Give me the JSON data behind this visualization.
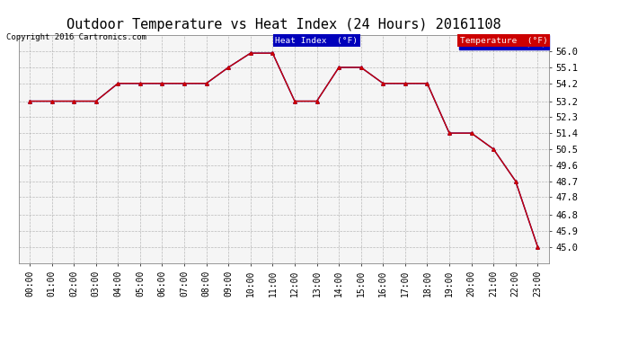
{
  "title": "Outdoor Temperature vs Heat Index (24 Hours) 20161108",
  "copyright": "Copyright 2016 Cartronics.com",
  "hours": [
    "00:00",
    "01:00",
    "02:00",
    "03:00",
    "04:00",
    "05:00",
    "06:00",
    "07:00",
    "08:00",
    "09:00",
    "10:00",
    "11:00",
    "12:00",
    "13:00",
    "14:00",
    "15:00",
    "16:00",
    "17:00",
    "18:00",
    "19:00",
    "20:00",
    "21:00",
    "22:00",
    "23:00"
  ],
  "temperature": [
    53.2,
    53.2,
    53.2,
    53.2,
    54.2,
    54.2,
    54.2,
    54.2,
    54.2,
    55.1,
    55.9,
    55.9,
    53.2,
    53.2,
    55.1,
    55.1,
    54.2,
    54.2,
    54.2,
    51.4,
    51.4,
    50.5,
    48.7,
    45.0
  ],
  "heat_index": [
    53.2,
    53.2,
    53.2,
    53.2,
    54.2,
    54.2,
    54.2,
    54.2,
    54.2,
    55.1,
    55.9,
    55.9,
    53.2,
    53.2,
    55.1,
    55.1,
    54.2,
    54.2,
    54.2,
    51.4,
    51.4,
    50.5,
    48.7,
    45.0
  ],
  "ylim": [
    44.1,
    56.9
  ],
  "yticks": [
    45.0,
    45.9,
    46.8,
    47.8,
    48.7,
    49.6,
    50.5,
    51.4,
    52.3,
    53.2,
    54.2,
    55.1,
    56.0
  ],
  "temp_color": "#cc0000",
  "heat_index_color": "#0000bb",
  "legend_heat_bg": "#0000bb",
  "legend_temp_bg": "#cc0000",
  "background_color": "#ffffff",
  "plot_bg_color": "#f5f5f5",
  "grid_color": "#aaaaaa",
  "title_fontsize": 11,
  "copyright_fontsize": 6.5,
  "tick_fontsize": 7,
  "ytick_fontsize": 7.5
}
